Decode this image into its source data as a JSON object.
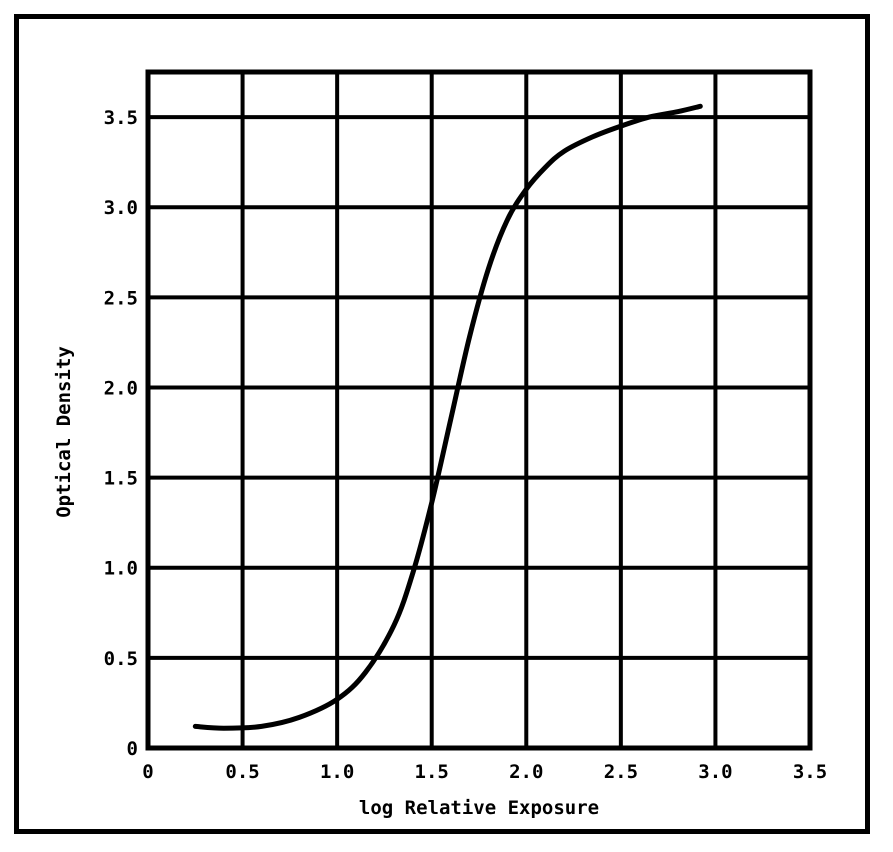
{
  "chart_data": {
    "type": "line",
    "title": "",
    "xlabel": "log Relative Exposure",
    "ylabel": "Optical Density",
    "xlim": [
      0,
      3.5
    ],
    "ylim": [
      0,
      3.5
    ],
    "grid": true,
    "x_ticks": [
      {
        "value": 0,
        "label": "0"
      },
      {
        "value": 0.5,
        "label": "0.5"
      },
      {
        "value": 1.0,
        "label": "1.0"
      },
      {
        "value": 1.5,
        "label": "1.5"
      },
      {
        "value": 2.0,
        "label": "2.0"
      },
      {
        "value": 2.5,
        "label": "2.5"
      },
      {
        "value": 3.0,
        "label": "3.0"
      },
      {
        "value": 3.5,
        "label": "3.5"
      }
    ],
    "y_ticks": [
      {
        "value": 0,
        "label": "0"
      },
      {
        "value": 0.5,
        "label": "0.5"
      },
      {
        "value": 1.0,
        "label": "1.0"
      },
      {
        "value": 1.5,
        "label": "1.5"
      },
      {
        "value": 2.0,
        "label": "2.0"
      },
      {
        "value": 2.5,
        "label": "2.5"
      },
      {
        "value": 3.0,
        "label": "3.0"
      },
      {
        "value": 3.5,
        "label": "3.5"
      }
    ],
    "series": [
      {
        "color": "#000000",
        "x": [
          0.25,
          0.4,
          0.6,
          0.8,
          1.0,
          1.15,
          1.3,
          1.4,
          1.5,
          1.6,
          1.7,
          1.8,
          1.9,
          2.0,
          2.1,
          2.2,
          2.35,
          2.5,
          2.65,
          2.8,
          2.92
        ],
        "y": [
          0.12,
          0.11,
          0.12,
          0.17,
          0.27,
          0.42,
          0.68,
          0.97,
          1.36,
          1.82,
          2.28,
          2.66,
          2.93,
          3.1,
          3.22,
          3.31,
          3.39,
          3.45,
          3.5,
          3.53,
          3.56
        ]
      }
    ]
  }
}
